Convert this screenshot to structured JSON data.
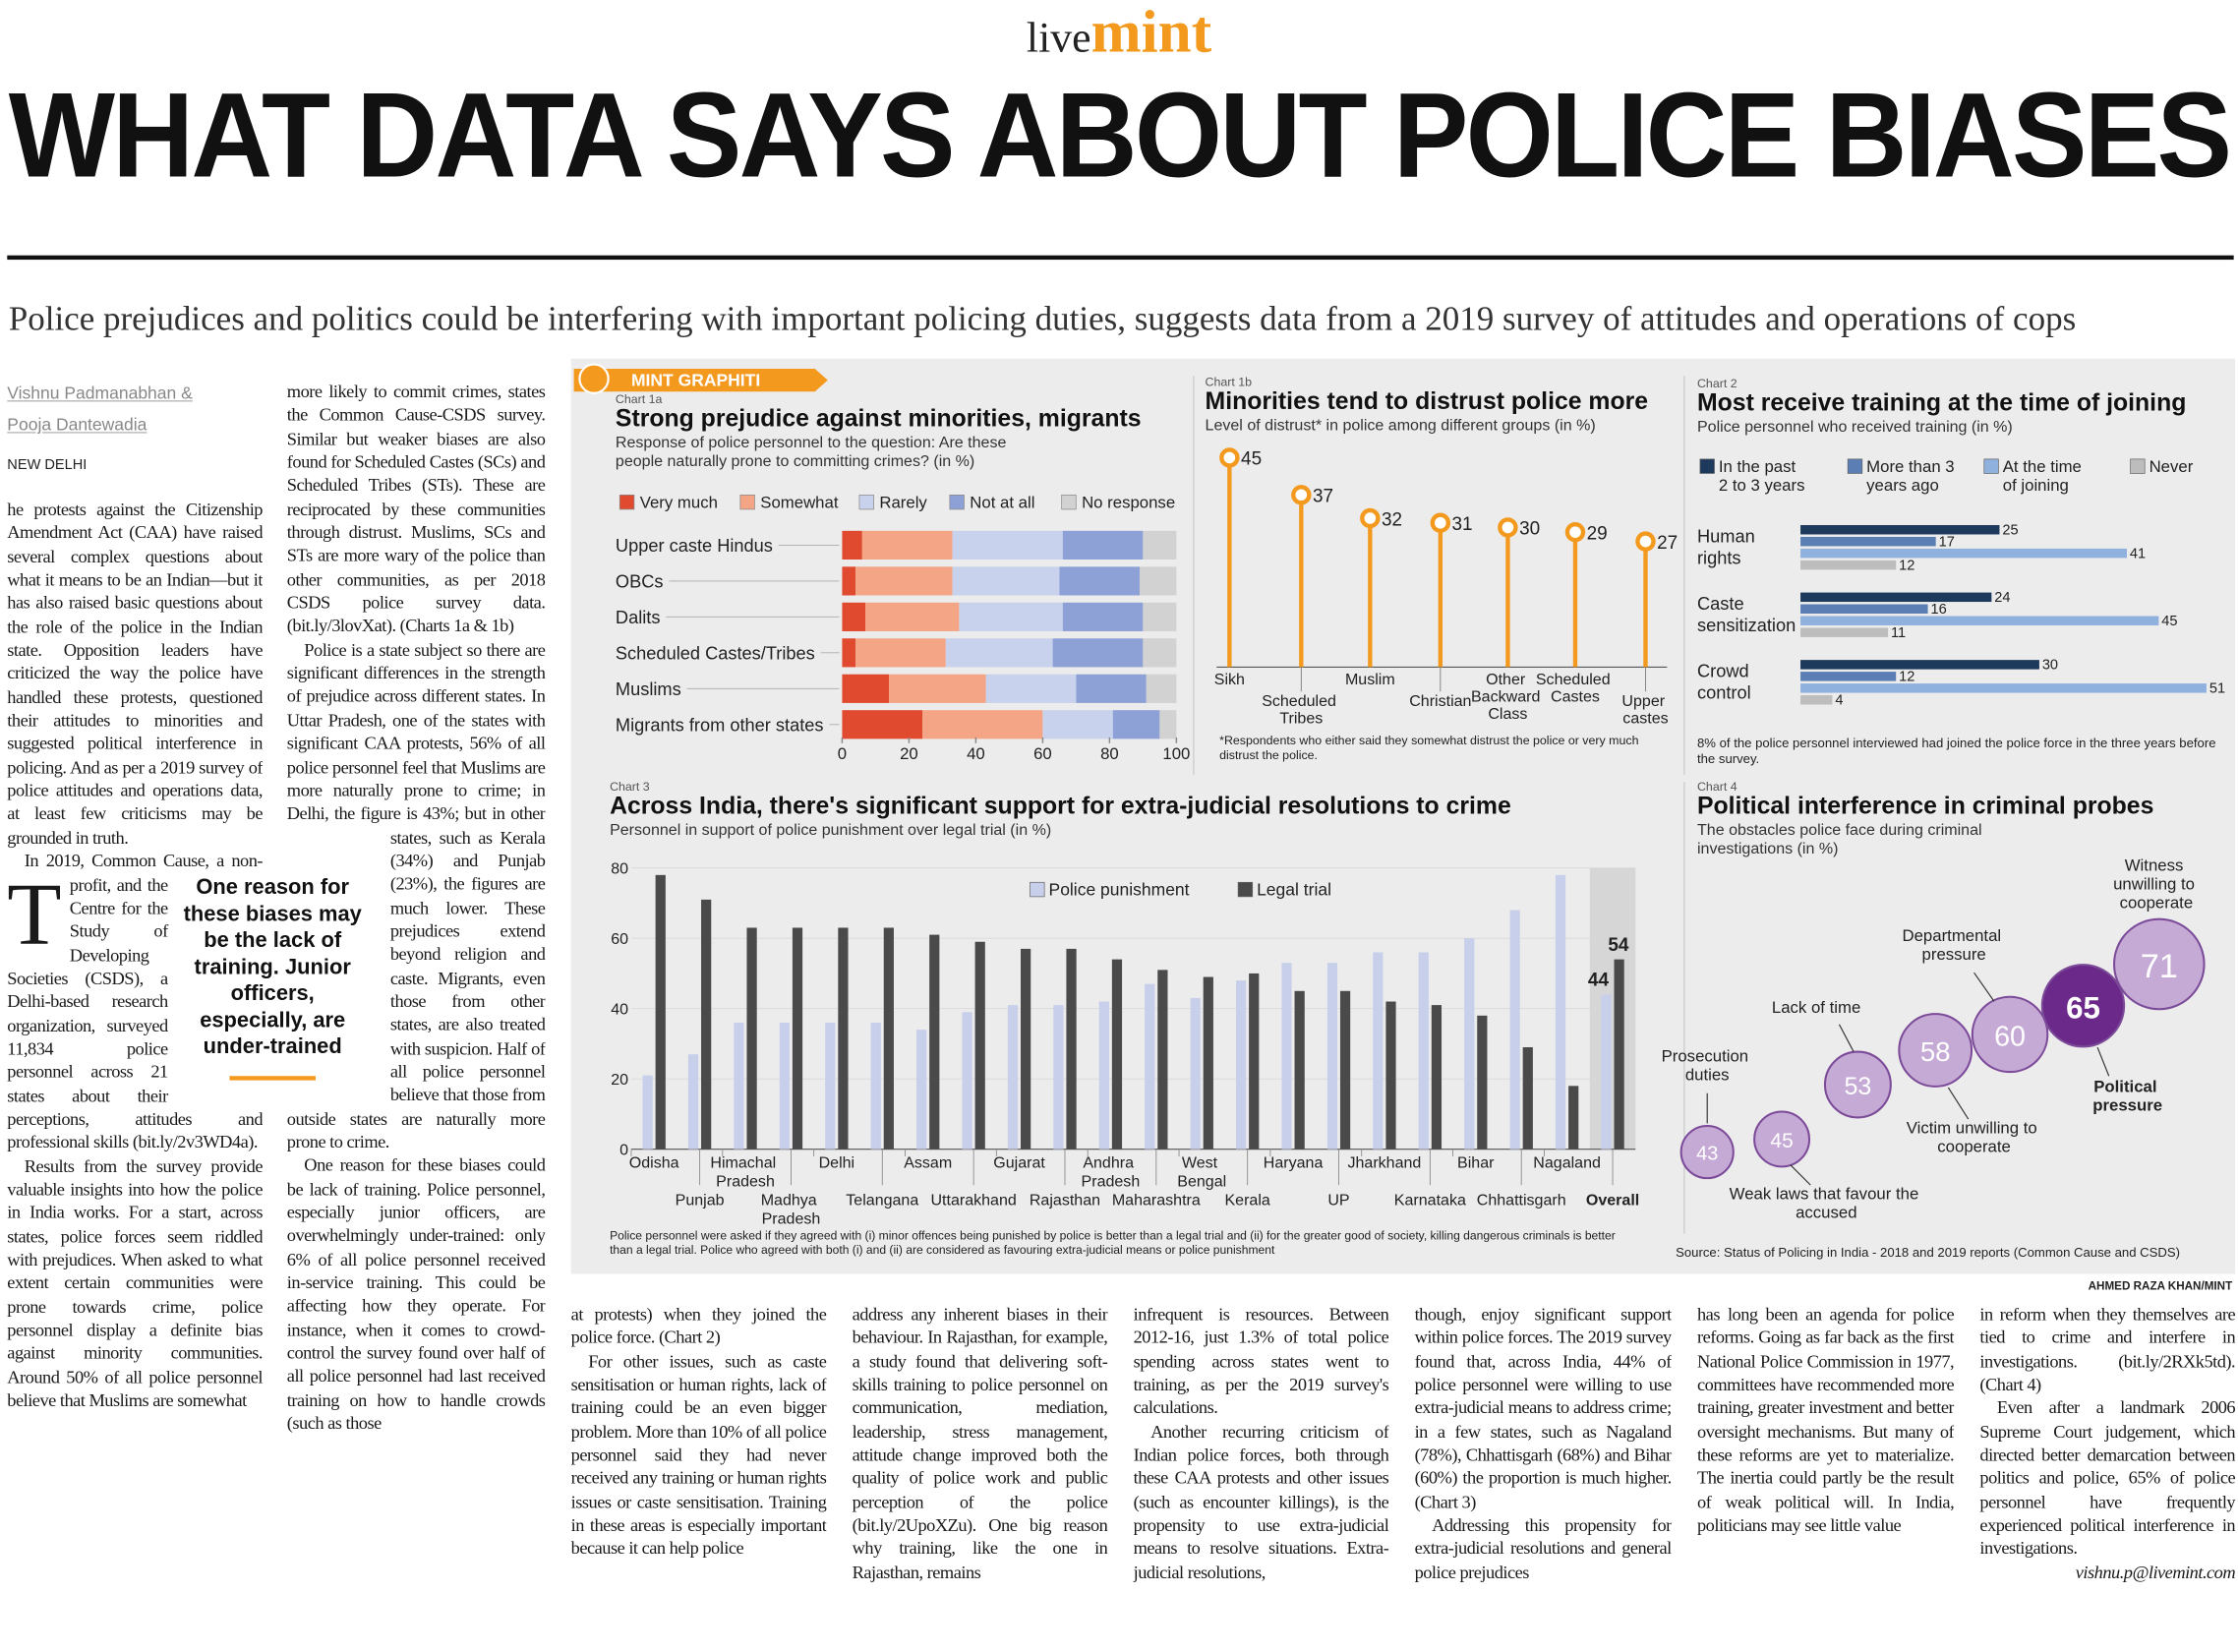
{
  "header": {
    "brand_live": "live",
    "brand_mint": "mint",
    "title": "WHAT DATA SAYS ABOUT POLICE BIASES",
    "subtitle": "Police prejudices and politics could be interfering with important policing duties, suggests data from a 2019 survey of attitudes and operations of cops"
  },
  "byline": {
    "authors": "Vishnu Padmanabhan & Pooja Dantewadia",
    "dateline": "NEW DELHI"
  },
  "pullquote": "One reason for these biases may be the lack of training. Junior officers, especially, are under-trained",
  "article": {
    "columns": [
      [
        "The protests against the Citizenship Amendment Act (CAA) have raised several complex questions about what it means to be an Indian—but it has also raised basic questions about the role of the police in the Indian state. Opposition leaders have criticized the way the police have handled these protests, questioned their attitudes to minorities and suggested political interference in policing. And as per a 2019 survey of police attitudes and operations data, at least few criticisms may be grounded in truth.",
        "In 2019, Common Cause, a non-profit, and the Centre for the Study of Developing Societies (CSDS), a Delhi-based research organization, surveyed 11,834 police personnel across 21 states about their perceptions, attitudes and professional skills (bit.ly/2v3WD4a).",
        "Results from the survey provide valuable insights into how the police in India works. For a start, across states, police forces seem riddled with prejudices. When asked to what extent certain communities were prone towards crime, police personnel display a definite bias against minority communities. Around 50% of all police personnel believe that Muslims are somewhat"
      ],
      [
        "more likely to commit crimes, states the Common Cause-CSDS survey. Similar but weaker biases are also found for Scheduled Castes (SCs) and Scheduled Tribes (STs). These are reciprocated by these communities through distrust. Muslims, SCs and STs are more wary of the police than other communities, as per 2018 CSDS police survey data. (bit.ly/3lovXat). (Charts 1a & 1b)",
        "Police is a state subject so there are significant differences in the strength of prejudice across different states. In Uttar Pradesh, one of the states with significant CAA protests, 56% of all police personnel feel that Muslims are more naturally prone to crime; in Delhi, the figure is 43%; but in other states, such as Kerala (34%) and Punjab (23%), the figures are much lower. These prejudices extend beyond religion and caste. Migrants, even those from other states, are also treated with suspicion. Half of all police personnel believe that those from outside states are naturally more prone to crime.",
        "One reason for these biases could be lack of training. Police personnel, especially junior officers, are overwhelmingly under-trained: only 6% of all police personnel received in-service training. This could be affecting how they operate. For instance, when it comes to crowd-control the survey found over half of all police personnel had last received training on how to handle crowds (such as those"
      ],
      [
        "at protests) when they joined the police force. (Chart 2)",
        "For other issues, such as caste sensitisation or human rights, lack of training could be an even bigger problem. More than 10% of all police personnel said they had never received any training or human rights issues or caste sensitisation. Training in these areas is especially important because it can help police"
      ],
      [
        "address any inherent biases in their behaviour. In Rajasthan, for example, a study found that delivering soft-skills training to police personnel on communication, mediation, leadership, stress management, attitude change improved both the quality of police work and public perception of the police (bit.ly/2UpoXZu). One big reason why training, like the one in Rajasthan, remains"
      ],
      [
        "infrequent is resources. Between 2012-16, just 1.3% of total police spending across states went to training, as per the 2019 survey's calculations.",
        "Another recurring criticism of Indian police forces, both through these CAA protests and other issues (such as encounter killings), is the propensity to use extra-judicial means to resolve situations. Extra-judicial resolutions,"
      ],
      [
        "though, enjoy significant support within police forces. The 2019 survey found that, across India, 44% of police personnel were willing to use extra-judicial means to address crime; in a few states, such as Nagaland (78%), Chhattisgarh (68%) and Bihar (60%) the proportion is much higher. (Chart 3)",
        "Addressing this propensity for extra-judicial resolutions and general police prejudices"
      ],
      [
        "has long been an agenda for police reforms. Going as far back as the first National Police Commission in 1977, committees have recommended more training, greater investment and better oversight mechanisms. But many of these reforms are yet to materialize. The inertia could partly be the result of weak political will. In India, politicians may see little value"
      ],
      [
        "in reform when they themselves are tied to crime and interfere in investigations. (bit.ly/2RXk5td). (Chart 4)",
        "Even after a landmark 2006 Supreme Court judgement, which directed better demarcation between politics and police, 65% of police personnel have frequently experienced political interference in investigations."
      ]
    ],
    "email": "vishnu.p@livemint.com"
  },
  "graphic": {
    "badge": "MINT GRAPHITI",
    "credit": "AHMED RAZA KHAN/MINT",
    "source": "Source: Status of Policing in India - 2018 and 2019 reports (Common Cause and CSDS)"
  },
  "chart_data": [
    {
      "label": "Chart 1a",
      "type": "stacked_bar",
      "orientation": "horizontal",
      "title": "Strong prejudice against minorities, migrants",
      "subtitle": "Response of police personnel to the question: Are these people naturally prone to committing crimes? (in %)",
      "categories": [
        "Upper caste Hindus",
        "OBCs",
        "Dalits",
        "Scheduled Castes/Tribes",
        "Muslims",
        "Migrants from other states"
      ],
      "series": [
        {
          "name": "Very much",
          "color": "#e04a2f",
          "values": [
            6,
            4,
            7,
            4,
            14,
            24
          ]
        },
        {
          "name": "Somewhat",
          "color": "#f3a585",
          "values": [
            27,
            29,
            28,
            27,
            29,
            36
          ]
        },
        {
          "name": "Rarely",
          "color": "#c8d2ec",
          "values": [
            33,
            32,
            31,
            32,
            27,
            21
          ]
        },
        {
          "name": "Not at all",
          "color": "#8da1d6",
          "values": [
            24,
            24,
            24,
            27,
            21,
            14
          ]
        },
        {
          "name": "No response",
          "color": "#d2d2d2",
          "values": [
            10,
            11,
            10,
            10,
            9,
            5
          ]
        }
      ],
      "xlim": [
        0,
        100
      ],
      "xticks": [
        0,
        20,
        40,
        60,
        80,
        100
      ]
    },
    {
      "label": "Chart 1b",
      "type": "lollipop",
      "title": "Minorities tend to distrust police more",
      "subtitle": "Level of distrust* in police among different groups (in %)",
      "categories": [
        "Sikh",
        "Scheduled Tribes",
        "Muslim",
        "Christian",
        "Other Backward Class",
        "Scheduled Castes",
        "Upper castes"
      ],
      "values": [
        45,
        37,
        32,
        31,
        30,
        29,
        27
      ],
      "color": "#f39a1e",
      "note": "*Respondents who either said they somewhat distrust the police or very much distrust the police."
    },
    {
      "label": "Chart 2",
      "type": "bar",
      "orientation": "horizontal",
      "title": "Most receive training at the time of joining",
      "subtitle": "Police personnel who received training (in %)",
      "categories": [
        "Human rights",
        "Caste sensitization",
        "Crowd control"
      ],
      "series": [
        {
          "name": "In the past 2 to 3 years",
          "color": "#1d3a5c",
          "values": [
            25,
            24,
            30
          ]
        },
        {
          "name": "More than 3 years ago",
          "color": "#5b7fb4",
          "values": [
            17,
            16,
            12
          ]
        },
        {
          "name": "At the time of joining",
          "color": "#8fb1de",
          "values": [
            41,
            45,
            51
          ]
        },
        {
          "name": "Never",
          "color": "#bdbdbd",
          "values": [
            12,
            11,
            4
          ]
        }
      ],
      "note": "8% of the police personnel interviewed had joined the police force in the three years before the survey."
    },
    {
      "label": "Chart 3",
      "type": "bar",
      "title": "Across India, there's significant support for extra-judicial resolutions to crime",
      "subtitle": "Personnel in support of police punishment over legal trial (in %)",
      "categories": [
        "Odisha",
        "Punjab",
        "Himachal Pradesh",
        "Madhya Pradesh",
        "Delhi",
        "Telangana",
        "Assam",
        "Uttarakhand",
        "Gujarat",
        "Rajasthan",
        "Andhra Pradesh",
        "Maharashtra",
        "West Bengal",
        "Kerala",
        "Haryana",
        "UP",
        "Jharkhand",
        "Karnataka",
        "Bihar",
        "Chhattisgarh",
        "Nagaland",
        "Overall"
      ],
      "series": [
        {
          "name": "Police punishment",
          "color": "#c8cfea",
          "values": [
            21,
            27,
            36,
            36,
            36,
            36,
            34,
            39,
            41,
            41,
            42,
            47,
            43,
            48,
            53,
            53,
            56,
            56,
            60,
            68,
            78,
            44
          ]
        },
        {
          "name": "Legal trial",
          "color": "#4a4a4a",
          "values": [
            78,
            71,
            63,
            63,
            63,
            63,
            61,
            59,
            57,
            57,
            54,
            51,
            49,
            50,
            45,
            45,
            42,
            41,
            38,
            29,
            18,
            54
          ]
        }
      ],
      "ylim": [
        0,
        80
      ],
      "yticks": [
        0,
        20,
        40,
        60,
        80
      ],
      "grid": true,
      "note": "Police personnel were asked if they agreed with (i) minor offences being punished by police is better than a legal trial and (ii) for the greater good of society, killing dangerous criminals is better than a legal trial. Police who agreed with both (i) and (ii) are considered as favouring extra-judicial means or police punishment"
    },
    {
      "label": "Chart 4",
      "type": "bubble",
      "title": "Political interference in criminal probes",
      "subtitle": "The obstacles police face during criminal investigations (in %)",
      "categories": [
        "Prosecution duties",
        "Weak laws that favour the accused",
        "Lack of time",
        "Victim unwilling to cooperate",
        "Departmental pressure",
        "Political pressure",
        "Witness unwilling to cooperate"
      ],
      "values": [
        43,
        45,
        53,
        58,
        60,
        65,
        71
      ],
      "colors": [
        "#c6aad6",
        "#c6aad6",
        "#c6aad6",
        "#c6aad6",
        "#c6aad6",
        "#6b2a8a",
        "#c6aad6"
      ]
    }
  ]
}
